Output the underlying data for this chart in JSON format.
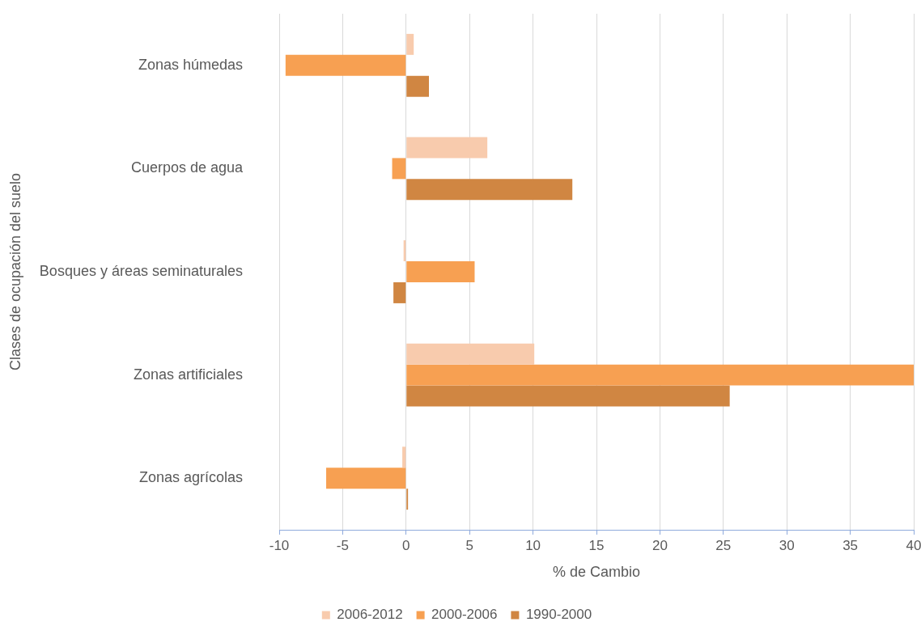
{
  "chart_data": {
    "type": "bar",
    "orientation": "horizontal",
    "xlabel": "% de Cambio",
    "ylabel": "Clases de ocupación del suelo",
    "categories": [
      "Zonas húmedas",
      "Cuerpos de agua",
      "Bosques y áreas seminaturales",
      "Zonas artificiales",
      "Zonas agrícolas"
    ],
    "series": [
      {
        "name": "2006-2012",
        "color": "#f8cbad",
        "values": [
          0.6,
          6.4,
          -0.2,
          10.1,
          -0.3
        ]
      },
      {
        "name": "2000-2006",
        "color": "#f7a052",
        "values": [
          -9.5,
          -1.1,
          5.4,
          40,
          -6.3
        ]
      },
      {
        "name": "1990-2000",
        "color": "#d08642",
        "values": [
          1.8,
          13.1,
          -1.0,
          25.5,
          0.15
        ]
      }
    ],
    "xlim": [
      -10,
      40
    ],
    "xticks": [
      -10,
      -5,
      0,
      5,
      10,
      15,
      20,
      25,
      30,
      35,
      40
    ],
    "grid": "x",
    "legend": "bottom"
  }
}
